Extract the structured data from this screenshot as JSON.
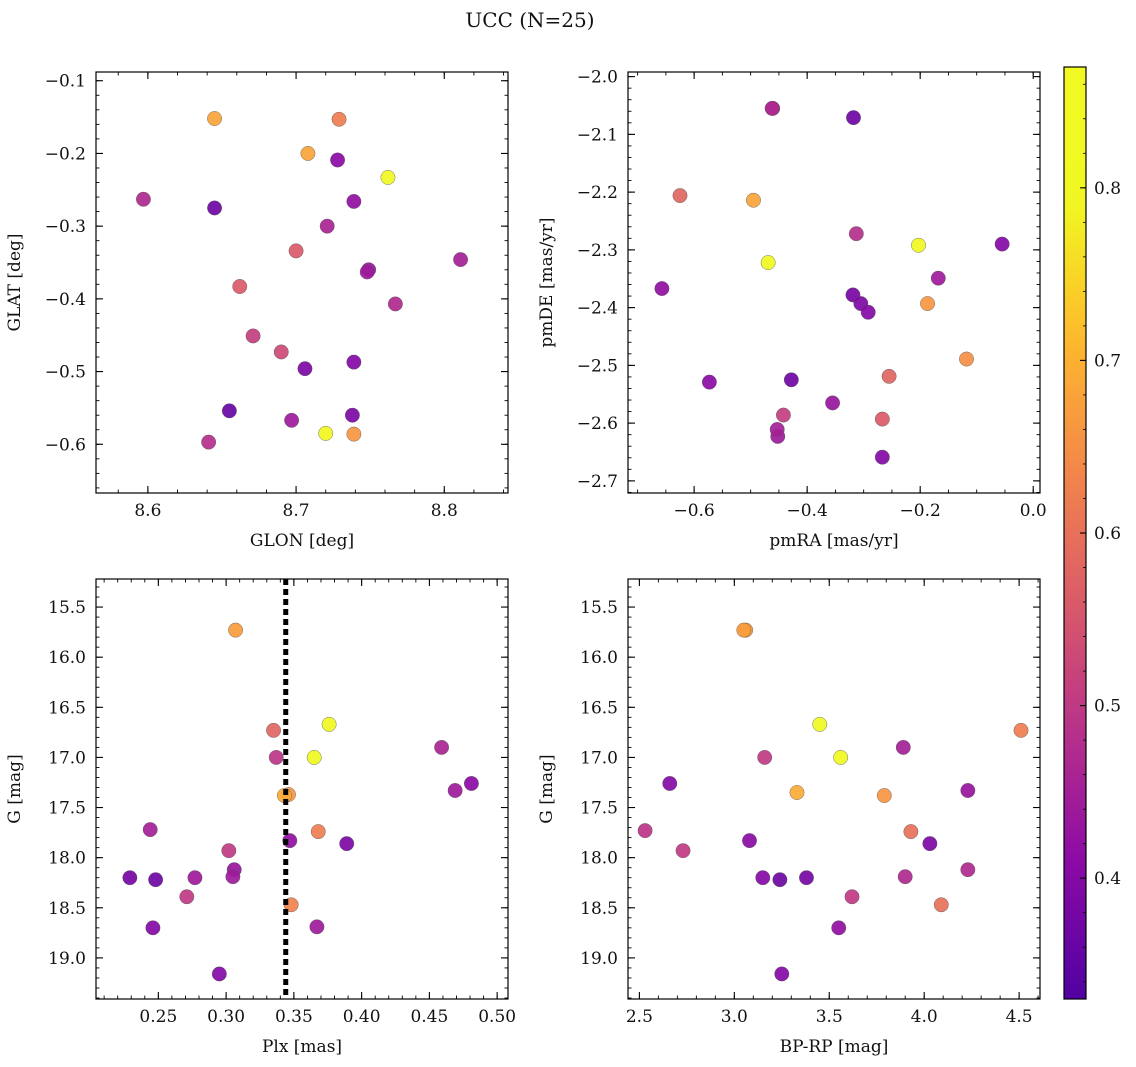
{
  "figure": {
    "title": "UCC (N=25)"
  },
  "colorbar": {
    "ticks": [
      0.4,
      0.5,
      0.6,
      0.7,
      0.8
    ],
    "tick_labels": [
      "0.4",
      "0.5",
      "0.6",
      "0.7",
      "0.8"
    ],
    "range": [
      0.33,
      0.87
    ],
    "colormap": "plasma"
  },
  "chart_data": [
    {
      "type": "scatter",
      "xlabel": "GLON [deg]",
      "ylabel": "GLAT [deg]",
      "xlim": [
        8.565,
        8.843
      ],
      "ylim": [
        -0.667,
        -0.088
      ],
      "y_inverted": false,
      "x_major_ticks": [
        8.6,
        8.7,
        8.8
      ],
      "x_tick_labels": [
        "8.6",
        "8.7",
        "8.8"
      ],
      "x_minor_step": 0.02,
      "y_major_ticks": [
        -0.6,
        -0.5,
        -0.4,
        -0.3,
        -0.2,
        -0.1
      ],
      "y_tick_labels": [
        "−0.6",
        "−0.5",
        "−0.4",
        "−0.3",
        "−0.2",
        "−0.1"
      ],
      "y_minor_step": 0.02,
      "x": [
        8.645,
        8.729,
        8.708,
        8.728,
        8.762,
        8.597,
        8.645,
        8.739,
        8.721,
        8.7,
        8.749,
        8.748,
        8.811,
        8.662,
        8.767,
        8.671,
        8.69,
        8.739,
        8.706,
        8.655,
        8.738,
        8.697,
        8.641,
        8.72,
        8.739
      ],
      "y": [
        -0.152,
        -0.153,
        -0.2,
        -0.209,
        -0.233,
        -0.263,
        -0.275,
        -0.266,
        -0.3,
        -0.334,
        -0.36,
        -0.363,
        -0.346,
        -0.383,
        -0.407,
        -0.451,
        -0.473,
        -0.487,
        -0.496,
        -0.554,
        -0.56,
        -0.567,
        -0.597,
        -0.585,
        -0.586
      ],
      "c": [
        0.68,
        0.62,
        0.68,
        0.41,
        0.87,
        0.47,
        0.37,
        0.42,
        0.46,
        0.56,
        0.43,
        0.44,
        0.45,
        0.56,
        0.47,
        0.51,
        0.53,
        0.4,
        0.39,
        0.36,
        0.39,
        0.44,
        0.48,
        0.79,
        0.66
      ]
    },
    {
      "type": "scatter",
      "xlabel": "pmRA [mas/yr]",
      "ylabel": "pmDE [mas/yr]",
      "xlim": [
        -0.717,
        0.012
      ],
      "ylim": [
        -2.721,
        -1.992
      ],
      "y_inverted": false,
      "x_major_ticks": [
        -0.6,
        -0.4,
        -0.2,
        0.0
      ],
      "x_tick_labels": [
        "−0.6",
        "−0.4",
        "−0.2",
        "0.0"
      ],
      "x_minor_step": 0.05,
      "y_major_ticks": [
        -2.7,
        -2.6,
        -2.5,
        -2.4,
        -2.3,
        -2.2,
        -2.1,
        -2.0
      ],
      "y_tick_labels": [
        "−2.7",
        "−2.6",
        "−2.5",
        "−2.4",
        "−2.3",
        "−2.2",
        "−2.1",
        "−2.0"
      ],
      "y_minor_step": 0.02,
      "x": [
        -0.462,
        -0.318,
        -0.625,
        -0.495,
        -0.313,
        -0.203,
        -0.055,
        -0.469,
        -0.657,
        -0.168,
        -0.319,
        -0.305,
        -0.292,
        -0.187,
        -0.573,
        -0.428,
        -0.118,
        -0.255,
        -0.355,
        -0.442,
        -0.267,
        -0.453,
        -0.452,
        -0.267,
        -0.461
      ],
      "y": [
        -2.055,
        -2.071,
        -2.206,
        -2.214,
        -2.272,
        -2.292,
        -2.29,
        -2.322,
        -2.367,
        -2.349,
        -2.378,
        -2.393,
        -2.408,
        -2.393,
        -2.529,
        -2.525,
        -2.489,
        -2.519,
        -2.565,
        -2.586,
        -2.593,
        -2.611,
        -2.623,
        -2.659,
        -2.055
      ],
      "c": [
        0.47,
        0.37,
        0.58,
        0.68,
        0.48,
        0.8,
        0.4,
        0.87,
        0.42,
        0.44,
        0.38,
        0.39,
        0.4,
        0.66,
        0.41,
        0.37,
        0.65,
        0.58,
        0.43,
        0.51,
        0.56,
        0.45,
        0.44,
        0.4,
        0.46
      ]
    },
    {
      "type": "scatter",
      "xlabel": "Plx [mas]",
      "ylabel": "G [mag]",
      "xlim": [
        0.204,
        0.508
      ],
      "ylim": [
        19.41,
        15.22
      ],
      "y_inverted": true,
      "x_major_ticks": [
        0.25,
        0.3,
        0.35,
        0.4,
        0.45,
        0.5
      ],
      "x_tick_labels": [
        "0.25",
        "0.30",
        "0.35",
        "0.40",
        "0.45",
        "0.50"
      ],
      "x_minor_step": 0.01,
      "y_major_ticks": [
        15.5,
        16.0,
        16.5,
        17.0,
        17.5,
        18.0,
        18.5,
        19.0
      ],
      "y_tick_labels": [
        "15.5",
        "16.0",
        "16.5",
        "17.0",
        "17.5",
        "18.0",
        "18.5",
        "19.0"
      ],
      "y_minor_step": 0.1,
      "vline": {
        "x": 0.344,
        "style": "dotted"
      },
      "x": [
        0.307,
        0.376,
        0.335,
        0.337,
        0.365,
        0.459,
        0.481,
        0.469,
        0.343,
        0.346,
        0.368,
        0.347,
        0.389,
        0.244,
        0.302,
        0.306,
        0.305,
        0.229,
        0.248,
        0.277,
        0.271,
        0.348,
        0.246,
        0.367,
        0.295
      ],
      "y": [
        15.73,
        16.67,
        16.73,
        17.0,
        17.0,
        16.9,
        17.26,
        17.33,
        17.38,
        17.37,
        17.74,
        17.83,
        17.86,
        17.72,
        17.93,
        18.12,
        18.19,
        18.2,
        18.22,
        18.2,
        18.39,
        18.47,
        18.7,
        18.69,
        19.16
      ],
      "c": [
        0.67,
        0.87,
        0.58,
        0.49,
        0.8,
        0.46,
        0.41,
        0.44,
        0.69,
        0.66,
        0.62,
        0.42,
        0.39,
        0.45,
        0.5,
        0.43,
        0.44,
        0.38,
        0.37,
        0.44,
        0.5,
        0.63,
        0.4,
        0.44,
        0.4
      ]
    },
    {
      "type": "scatter",
      "xlabel": "BP-RP [mag]",
      "ylabel": "G [mag]",
      "xlim": [
        2.44,
        4.61
      ],
      "ylim": [
        19.41,
        15.22
      ],
      "y_inverted": true,
      "x_major_ticks": [
        2.5,
        3.0,
        3.5,
        4.0,
        4.5
      ],
      "x_tick_labels": [
        "2.5",
        "3.0",
        "3.5",
        "4.0",
        "4.5"
      ],
      "x_minor_step": 0.1,
      "y_major_ticks": [
        15.5,
        16.0,
        16.5,
        17.0,
        17.5,
        18.0,
        18.5,
        19.0
      ],
      "y_tick_labels": [
        "15.5",
        "16.0",
        "16.5",
        "17.0",
        "17.5",
        "18.0",
        "18.5",
        "19.0"
      ],
      "y_minor_step": 0.1,
      "x": [
        3.06,
        3.45,
        4.51,
        3.16,
        3.56,
        3.89,
        2.66,
        4.23,
        3.33,
        3.79,
        2.53,
        3.08,
        3.93,
        4.03,
        2.73,
        4.23,
        3.15,
        3.24,
        3.38,
        3.9,
        3.62,
        4.09,
        3.55,
        3.25,
        3.05
      ],
      "y": [
        15.73,
        16.67,
        16.73,
        17.0,
        17.0,
        16.9,
        17.26,
        17.33,
        17.35,
        17.38,
        17.73,
        17.83,
        17.74,
        17.86,
        17.93,
        18.12,
        18.2,
        18.22,
        18.2,
        18.19,
        18.39,
        18.47,
        18.7,
        19.16,
        15.73
      ],
      "c": [
        0.67,
        0.87,
        0.62,
        0.5,
        0.8,
        0.45,
        0.4,
        0.43,
        0.69,
        0.66,
        0.49,
        0.41,
        0.6,
        0.39,
        0.5,
        0.47,
        0.4,
        0.37,
        0.38,
        0.47,
        0.5,
        0.6,
        0.42,
        0.4,
        0.67
      ]
    }
  ]
}
